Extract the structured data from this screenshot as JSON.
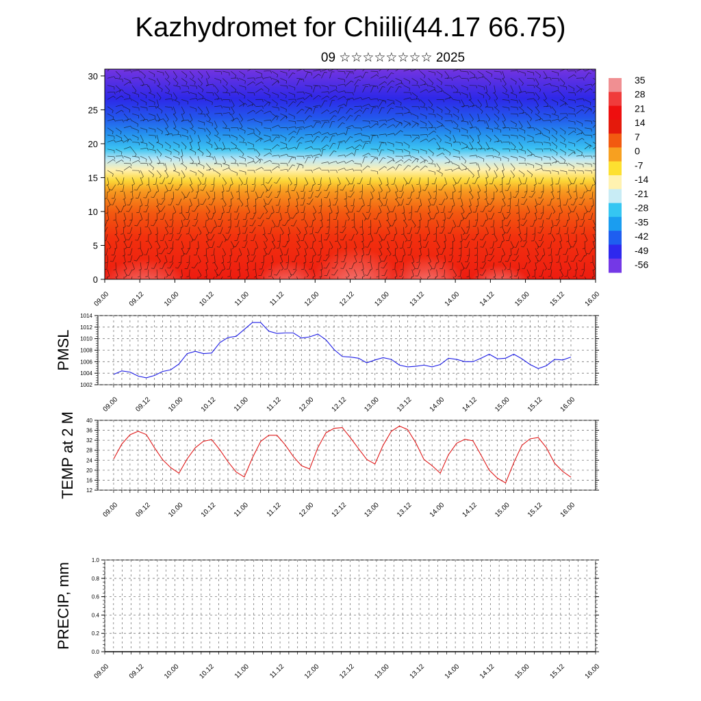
{
  "header": {
    "title": "Kazhydromet for Chiili(44.17 66.75)",
    "subtitle": "09 ☆☆☆☆☆☆☆☆ 2025"
  },
  "time_labels": [
    "09.00",
    "09.12",
    "10.00",
    "10.12",
    "11.00",
    "11.12",
    "12.00",
    "12.12",
    "13.00",
    "13.12",
    "14.00",
    "14.12",
    "15.00",
    "15.12",
    "16.00"
  ],
  "chart_data": [
    {
      "type": "heatmap",
      "x": [
        "09.00",
        "09.12",
        "10.00",
        "10.12",
        "11.00",
        "11.12",
        "12.00",
        "12.12",
        "13.00",
        "13.12",
        "14.00",
        "14.12",
        "15.00",
        "15.12",
        "16.00"
      ],
      "ylim": [
        0,
        31
      ],
      "yticks": [
        0,
        5,
        10,
        15,
        20,
        25,
        30
      ],
      "colorbar": {
        "labels": [
          "35",
          "28",
          "21",
          "14",
          "7",
          "0",
          "-7",
          "-14",
          "-21",
          "-28",
          "-35",
          "-42",
          "-49",
          "-56"
        ],
        "colors": [
          "#f08f92",
          "#f03b3b",
          "#ee0f0f",
          "#e41a0c",
          "#f25a10",
          "#f7a020",
          "#fde030",
          "#fff2b0",
          "#c8ecf5",
          "#35c6f2",
          "#1a9df0",
          "#1e5ef0",
          "#2e28ee",
          "#7438e6"
        ]
      },
      "vertical_profile_temperature": [
        {
          "height": 0,
          "value": 35
        },
        {
          "height": 5,
          "value": 24
        },
        {
          "height": 10,
          "value": 14
        },
        {
          "height": 14,
          "value": 3
        },
        {
          "height": 16,
          "value": -10
        },
        {
          "height": 18,
          "value": -22
        },
        {
          "height": 21,
          "value": -35
        },
        {
          "height": 24,
          "value": -46
        },
        {
          "height": 27,
          "value": -53
        },
        {
          "height": 31,
          "value": -58
        }
      ]
    },
    {
      "type": "line",
      "ylabel": "PMSL",
      "ylim": [
        1002,
        1014
      ],
      "yticks": [
        1002,
        1004,
        1006,
        1008,
        1010,
        1012,
        1014
      ],
      "color": "#1a1ae6",
      "series": [
        {
          "values": [
            1003.8,
            1004.4,
            1004.2,
            1003.5,
            1003.2,
            1003.6,
            1004.3,
            1004.6,
            1005.6,
            1007.4,
            1007.8,
            1007.4,
            1007.5,
            1009.3,
            1010.2,
            1010.4,
            1011.6,
            1012.8,
            1012.8,
            1011.3,
            1010.9,
            1011.0,
            1011.0,
            1010.1,
            1010.3,
            1010.8,
            1009.8,
            1008.1,
            1006.9,
            1006.8,
            1006.6,
            1005.8,
            1006.3,
            1006.7,
            1006.4,
            1005.4,
            1005.1,
            1005.2,
            1005.4,
            1005.1,
            1005.5,
            1006.6,
            1006.4,
            1006.0,
            1006.0,
            1006.6,
            1007.3,
            1006.5,
            1006.6,
            1007.3,
            1006.5,
            1005.5,
            1004.8,
            1005.3,
            1006.4,
            1006.3,
            1006.8
          ]
        }
      ]
    },
    {
      "type": "line",
      "ylabel": "TEMP at 2 M",
      "ylim": [
        12,
        40
      ],
      "yticks": [
        12,
        16,
        20,
        24,
        28,
        32,
        36,
        40
      ],
      "color": "#e01818",
      "series": [
        {
          "values": [
            24.5,
            30.5,
            34.2,
            35.6,
            34.3,
            29.0,
            24.2,
            21.0,
            18.8,
            24.5,
            29.0,
            31.6,
            32.3,
            28.2,
            23.4,
            19.3,
            17.3,
            25.0,
            31.5,
            34.0,
            34.0,
            30.2,
            25.5,
            21.8,
            20.5,
            29.0,
            35.0,
            36.8,
            37.1,
            33.0,
            28.6,
            24.3,
            22.5,
            30.0,
            35.6,
            37.7,
            36.3,
            31.0,
            24.3,
            21.8,
            18.8,
            26.2,
            30.8,
            32.4,
            31.8,
            26.0,
            20.0,
            16.8,
            14.9,
            23.0,
            30.0,
            32.6,
            33.1,
            29.0,
            22.8,
            19.5,
            17.2
          ]
        }
      ]
    },
    {
      "type": "line",
      "ylabel": "PRECIP, mm",
      "ylim": [
        0,
        1
      ],
      "yticks": [
        "0.0",
        "0.2",
        "0.4",
        "0.6",
        "0.8",
        "1.0"
      ],
      "color": "#000000",
      "series": [
        {
          "values": [
            0,
            0,
            0,
            0,
            0,
            0,
            0,
            0,
            0,
            0,
            0,
            0,
            0,
            0,
            0,
            0,
            0,
            0,
            0,
            0,
            0,
            0,
            0,
            0,
            0,
            0,
            0,
            0,
            0,
            0,
            0,
            0,
            0,
            0,
            0,
            0,
            0,
            0,
            0,
            0,
            0,
            0,
            0,
            0,
            0,
            0,
            0,
            0,
            0,
            0,
            0,
            0,
            0,
            0,
            0,
            0,
            0
          ]
        }
      ]
    }
  ]
}
